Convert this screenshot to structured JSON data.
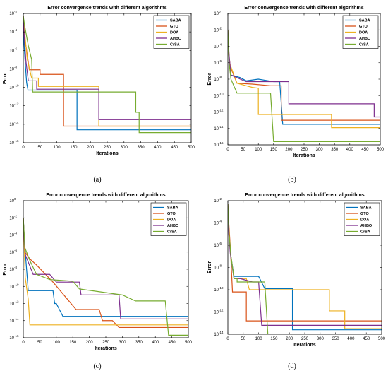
{
  "colors": {
    "SABA": "#0072BD",
    "GTO": "#D95319",
    "DOA": "#EDB120",
    "AHBO": "#7E2F8E",
    "CrSA": "#77AC30"
  },
  "chart_data": [
    {
      "type": "line",
      "caption": "(a)",
      "title": "Error convergence trends with different algorithms",
      "xlabel": "Iterations",
      "ylabel": "Error",
      "yscale": "log",
      "xlim": [
        0,
        500
      ],
      "ylim_exp": [
        -16,
        -2
      ],
      "xticks": [
        0,
        50,
        100,
        150,
        200,
        250,
        300,
        350,
        400,
        450,
        500
      ],
      "yticks_exp": [
        -16,
        -14,
        -12,
        -10,
        -8,
        -6,
        -4,
        -2
      ],
      "legend_position": "top-right",
      "series": [
        {
          "name": "SABA",
          "points": [
            [
              0,
              -2.3
            ],
            [
              2,
              -5.2
            ],
            [
              6,
              -7.5
            ],
            [
              10,
              -9.5
            ],
            [
              14,
              -10.3
            ],
            [
              60,
              -10.3
            ],
            [
              160,
              -10.3
            ],
            [
              160,
              -14.6
            ],
            [
              500,
              -14.6
            ]
          ]
        },
        {
          "name": "GTO",
          "points": [
            [
              0,
              -2.3
            ],
            [
              3,
              -4.5
            ],
            [
              10,
              -6.0
            ],
            [
              18,
              -8.1
            ],
            [
              50,
              -8.1
            ],
            [
              50,
              -8.6
            ],
            [
              120,
              -8.6
            ],
            [
              120,
              -14.2
            ],
            [
              500,
              -14.2
            ]
          ]
        },
        {
          "name": "DOA",
          "points": [
            [
              0,
              -2.3
            ],
            [
              4,
              -4.0
            ],
            [
              12,
              -7.0
            ],
            [
              25,
              -9.0
            ],
            [
              45,
              -9.0
            ],
            [
              45,
              -9.9
            ],
            [
              225,
              -9.9
            ],
            [
              225,
              -14.2
            ],
            [
              500,
              -14.2
            ]
          ]
        },
        {
          "name": "AHBO",
          "points": [
            [
              0,
              -2.3
            ],
            [
              3,
              -4.6
            ],
            [
              8,
              -7.2
            ],
            [
              15,
              -9.3
            ],
            [
              40,
              -9.3
            ],
            [
              40,
              -10.2
            ],
            [
              225,
              -10.2
            ],
            [
              225,
              -13.5
            ],
            [
              500,
              -13.5
            ]
          ]
        },
        {
          "name": "CrSA",
          "points": [
            [
              0,
              -2.3
            ],
            [
              5,
              -3.5
            ],
            [
              15,
              -5.5
            ],
            [
              25,
              -7.0
            ],
            [
              28,
              -10.5
            ],
            [
              210,
              -10.5
            ],
            [
              335,
              -10.5
            ],
            [
              335,
              -12.7
            ],
            [
              345,
              -12.7
            ],
            [
              345,
              -14.9
            ],
            [
              500,
              -14.9
            ]
          ]
        }
      ]
    },
    {
      "type": "line",
      "caption": "(b)",
      "title": "Error convergence trends with different algorithms",
      "xlabel": "Iterations",
      "ylabel": "Error",
      "yscale": "log",
      "xlim": [
        0,
        500
      ],
      "ylim_exp": [
        -16,
        0
      ],
      "xticks": [
        0,
        50,
        100,
        150,
        200,
        250,
        300,
        350,
        400,
        450,
        500
      ],
      "yticks_exp": [
        -16,
        -14,
        -12,
        -10,
        -8,
        -6,
        -4,
        -2,
        0
      ],
      "legend_position": "top-right",
      "series": [
        {
          "name": "SABA",
          "points": [
            [
              0,
              -2.0
            ],
            [
              4,
              -5.5
            ],
            [
              10,
              -7.5
            ],
            [
              40,
              -7.8
            ],
            [
              60,
              -8.2
            ],
            [
              100,
              -8.0
            ],
            [
              150,
              -8.3
            ],
            [
              170,
              -8.3
            ],
            [
              180,
              -13.5
            ],
            [
              500,
              -13.5
            ]
          ]
        },
        {
          "name": "GTO",
          "points": [
            [
              0,
              -2.0
            ],
            [
              3,
              -5.0
            ],
            [
              8,
              -6.5
            ],
            [
              30,
              -8.5
            ],
            [
              80,
              -8.6
            ],
            [
              140,
              -8.8
            ],
            [
              175,
              -8.8
            ],
            [
              175,
              -13.0
            ],
            [
              500,
              -13.0
            ]
          ]
        },
        {
          "name": "DOA",
          "points": [
            [
              0,
              -2.0
            ],
            [
              5,
              -6.0
            ],
            [
              30,
              -8.5
            ],
            [
              80,
              -9.0
            ],
            [
              100,
              -9.1
            ],
            [
              100,
              -12.3
            ],
            [
              340,
              -12.3
            ],
            [
              340,
              -13.9
            ],
            [
              500,
              -13.9
            ]
          ]
        },
        {
          "name": "AHBO",
          "points": [
            [
              0,
              -2.0
            ],
            [
              4,
              -5.0
            ],
            [
              10,
              -7.5
            ],
            [
              60,
              -8.3
            ],
            [
              200,
              -8.3
            ],
            [
              200,
              -11.0
            ],
            [
              480,
              -11.0
            ],
            [
              480,
              -12.6
            ],
            [
              500,
              -12.6
            ]
          ]
        },
        {
          "name": "CrSA",
          "points": [
            [
              0,
              -2.0
            ],
            [
              4,
              -6.0
            ],
            [
              10,
              -8.0
            ],
            [
              30,
              -9.7
            ],
            [
              50,
              -9.7
            ],
            [
              120,
              -9.7
            ],
            [
              140,
              -9.7
            ],
            [
              150,
              -15.6
            ],
            [
              500,
              -15.6
            ]
          ]
        }
      ]
    },
    {
      "type": "line",
      "caption": "(c)",
      "title": "Error convergence trends with different algorithms",
      "xlabel": "Iterations",
      "ylabel": "Error",
      "yscale": "log",
      "xlim": [
        0,
        500
      ],
      "ylim_exp": [
        -16,
        0
      ],
      "xticks": [
        0,
        50,
        100,
        150,
        200,
        250,
        300,
        350,
        400,
        450,
        500
      ],
      "yticks_exp": [
        -16,
        -14,
        -12,
        -10,
        -8,
        -6,
        -4,
        -2,
        0
      ],
      "legend_position": "top-right",
      "series": [
        {
          "name": "SABA",
          "points": [
            [
              0,
              -2.0
            ],
            [
              4,
              -5.0
            ],
            [
              10,
              -8.0
            ],
            [
              15,
              -10.5
            ],
            [
              60,
              -10.5
            ],
            [
              90,
              -10.5
            ],
            [
              95,
              -12.0
            ],
            [
              100,
              -12.0
            ],
            [
              120,
              -13.5
            ],
            [
              500,
              -13.5
            ]
          ]
        },
        {
          "name": "GTO",
          "points": [
            [
              0,
              -2.0
            ],
            [
              5,
              -6.0
            ],
            [
              20,
              -6.8
            ],
            [
              40,
              -7.5
            ],
            [
              90,
              -9.5
            ],
            [
              160,
              -12.7
            ],
            [
              230,
              -12.7
            ],
            [
              240,
              -14.0
            ],
            [
              270,
              -14.0
            ],
            [
              290,
              -14.8
            ],
            [
              500,
              -14.8
            ]
          ]
        },
        {
          "name": "DOA",
          "points": [
            [
              0,
              -2.0
            ],
            [
              6,
              -9.0
            ],
            [
              15,
              -11.5
            ],
            [
              20,
              -14.5
            ],
            [
              500,
              -14.5
            ]
          ]
        },
        {
          "name": "AHBO",
          "points": [
            [
              0,
              -2.0
            ],
            [
              3,
              -4.6
            ],
            [
              6,
              -6.3
            ],
            [
              30,
              -8.6
            ],
            [
              80,
              -8.6
            ],
            [
              100,
              -9.5
            ],
            [
              170,
              -9.5
            ],
            [
              175,
              -11.0
            ],
            [
              290,
              -11.0
            ],
            [
              295,
              -13.8
            ],
            [
              500,
              -13.8
            ]
          ]
        },
        {
          "name": "CrSA",
          "points": [
            [
              0,
              -2.0
            ],
            [
              5,
              -5.5
            ],
            [
              20,
              -7.0
            ],
            [
              40,
              -8.6
            ],
            [
              80,
              -9.2
            ],
            [
              150,
              -9.4
            ],
            [
              170,
              -10.3
            ],
            [
              300,
              -11.0
            ],
            [
              340,
              -11.7
            ],
            [
              430,
              -11.7
            ],
            [
              440,
              -15.7
            ],
            [
              500,
              -15.7
            ]
          ]
        }
      ]
    },
    {
      "type": "line",
      "caption": "(d)",
      "title": "Error convergence trends with different algorithms",
      "xlabel": "Iterations",
      "ylabel": "Error",
      "yscale": "log",
      "xlim": [
        0,
        500
      ],
      "ylim_exp": [
        -14,
        -2
      ],
      "xticks": [
        0,
        50,
        100,
        150,
        200,
        250,
        300,
        350,
        400,
        450,
        500
      ],
      "yticks_exp": [
        -14,
        -12,
        -10,
        -8,
        -6,
        -4,
        -2
      ],
      "legend_position": "top-right",
      "series": [
        {
          "name": "SABA",
          "points": [
            [
              0,
              -2.3
            ],
            [
              3,
              -4.5
            ],
            [
              10,
              -7.0
            ],
            [
              20,
              -8.8
            ],
            [
              100,
              -8.8
            ],
            [
              120,
              -9.9
            ],
            [
              210,
              -9.9
            ],
            [
              210,
              -13.6
            ],
            [
              500,
              -13.6
            ]
          ]
        },
        {
          "name": "GTO",
          "points": [
            [
              0,
              -2.3
            ],
            [
              3,
              -4.0
            ],
            [
              8,
              -6.2
            ],
            [
              15,
              -10.2
            ],
            [
              60,
              -10.2
            ],
            [
              60,
              -12.8
            ],
            [
              500,
              -12.8
            ]
          ]
        },
        {
          "name": "DOA",
          "points": [
            [
              0,
              -2.3
            ],
            [
              4,
              -5.0
            ],
            [
              10,
              -7.0
            ],
            [
              20,
              -9.0
            ],
            [
              60,
              -9.0
            ],
            [
              70,
              -10.0
            ],
            [
              330,
              -10.0
            ],
            [
              330,
              -11.9
            ],
            [
              380,
              -11.9
            ],
            [
              380,
              -13.5
            ],
            [
              500,
              -13.5
            ]
          ]
        },
        {
          "name": "AHBO",
          "points": [
            [
              0,
              -2.3
            ],
            [
              3,
              -5.0
            ],
            [
              8,
              -6.8
            ],
            [
              20,
              -9.0
            ],
            [
              40,
              -9.0
            ],
            [
              80,
              -9.3
            ],
            [
              100,
              -9.3
            ],
            [
              110,
              -13.2
            ],
            [
              500,
              -13.2
            ]
          ]
        },
        {
          "name": "CrSA",
          "points": [
            [
              0,
              -2.3
            ],
            [
              4,
              -5.0
            ],
            [
              10,
              -7.0
            ],
            [
              20,
              -9.0
            ],
            [
              30,
              -9.0
            ],
            [
              30,
              -9.3
            ],
            [
              120,
              -9.3
            ],
            [
              130,
              -14.0
            ],
            [
              500,
              -14.0
            ]
          ]
        }
      ]
    }
  ]
}
